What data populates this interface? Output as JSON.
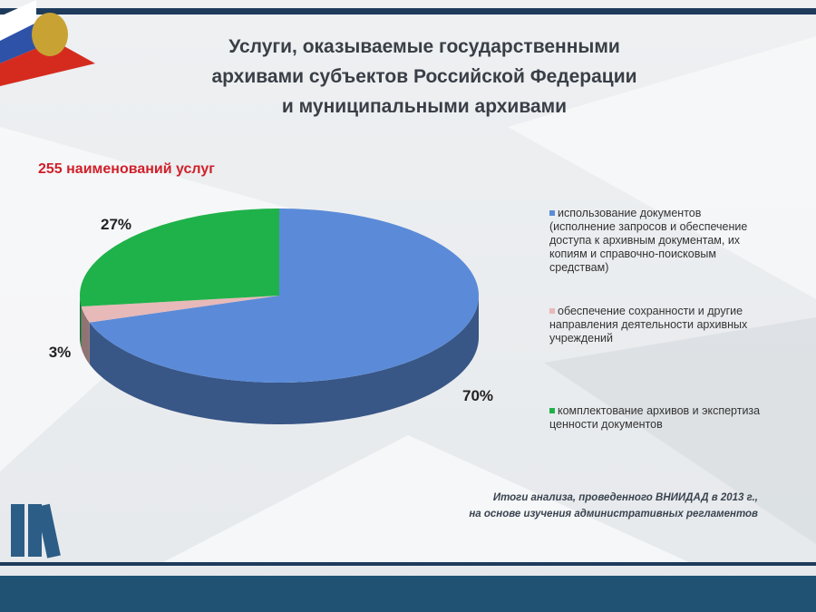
{
  "chart_data": {
    "type": "pie3d",
    "title": [
      "Услуги, оказываемые государственными",
      "архивами субъектов Российской Федерации",
      "и муниципальными архивами"
    ],
    "subtitle": "255 наименований услуг",
    "categories": [
      "использование документов (исполнение запросов и обеспечение доступа к архивным документам, их копиям и справочно-поисковым средствам)",
      "обеспечение сохранности и другие направления деятельности архивных учреждений",
      "комплектование архивов и экспертиза ценности документов"
    ],
    "values": [
      70,
      3,
      27
    ],
    "value_labels": [
      "70%",
      "3%",
      "27%"
    ],
    "colors": [
      "#5b8bd8",
      "#e8b9b9",
      "#1fb24a"
    ],
    "source": [
      "Итоги анализа, проведенного ВНИИДАД в 2013 г.,",
      "на основе изучения административных регламентов"
    ]
  }
}
